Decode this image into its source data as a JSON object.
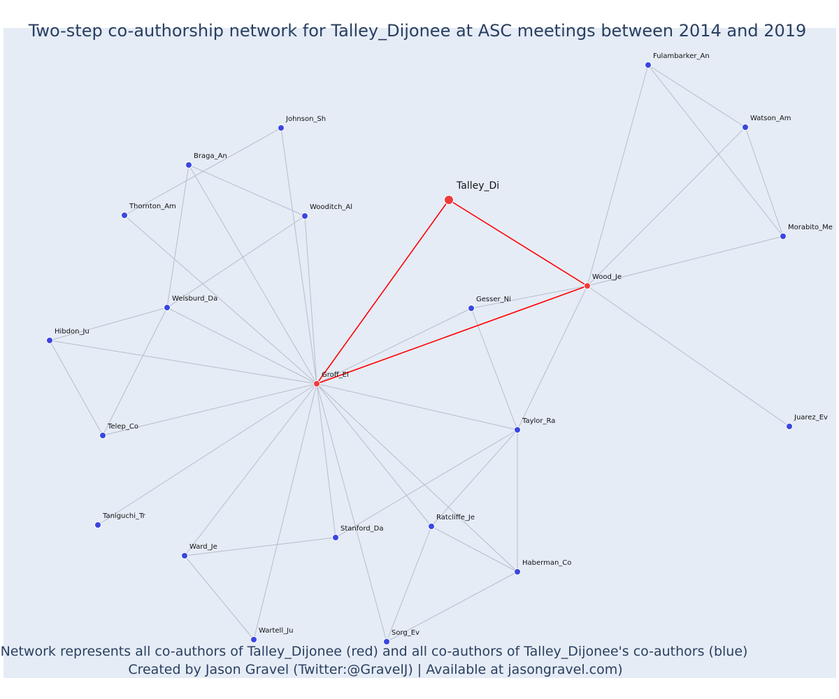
{
  "title": "Two-step co-authorship network for Talley_Dijonee at ASC meetings between 2014 and 2019",
  "footer": {
    "line1": "Network represents all co-authors of Talley_Dijonee (red) and all co-authors of Talley_Dijonee's co-authors (blue)",
    "line2": "Created by Jason Gravel (Twitter:@GravelJ) | Available at jasongravel.com)"
  },
  "colors": {
    "background": "#e5ecf6",
    "primary_node": "#ef3b3b",
    "secondary_node": "#3b46e0",
    "primary_edge": "#ff0000",
    "secondary_edge": "#b8bccb",
    "text": "#2a3f5f"
  },
  "nodes": [
    {
      "id": "Talley_Di",
      "group": "focus"
    },
    {
      "id": "Wood_Je",
      "group": "coauthor"
    },
    {
      "id": "Groff_El",
      "group": "coauthor"
    },
    {
      "id": "Fulambarker_An",
      "group": "second"
    },
    {
      "id": "Watson_Am",
      "group": "second"
    },
    {
      "id": "Morabito_Me",
      "group": "second"
    },
    {
      "id": "Juarez_Ev",
      "group": "second"
    },
    {
      "id": "Gesser_Ni",
      "group": "second"
    },
    {
      "id": "Taylor_Ra",
      "group": "second"
    },
    {
      "id": "Johnson_Sh",
      "group": "second"
    },
    {
      "id": "Braga_An",
      "group": "second"
    },
    {
      "id": "Thornton_Am",
      "group": "second"
    },
    {
      "id": "Wooditch_Al",
      "group": "second"
    },
    {
      "id": "Weisburd_Da",
      "group": "second"
    },
    {
      "id": "Hibdon_Ju",
      "group": "second"
    },
    {
      "id": "Telep_Co",
      "group": "second"
    },
    {
      "id": "Taniguchi_Tr",
      "group": "second"
    },
    {
      "id": "Ward_Je",
      "group": "second"
    },
    {
      "id": "Stanford_Da",
      "group": "second"
    },
    {
      "id": "Ratcliffe_Je",
      "group": "second"
    },
    {
      "id": "Haberman_Co",
      "group": "second"
    },
    {
      "id": "Wartell_Ju",
      "group": "second"
    },
    {
      "id": "Sorg_Ev",
      "group": "second"
    }
  ],
  "edges": [
    [
      "Talley_Di",
      "Groff_El",
      "primary"
    ],
    [
      "Talley_Di",
      "Wood_Je",
      "primary"
    ],
    [
      "Groff_El",
      "Wood_Je",
      "primary"
    ],
    [
      "Wood_Je",
      "Fulambarker_An",
      "secondary"
    ],
    [
      "Wood_Je",
      "Watson_Am",
      "secondary"
    ],
    [
      "Wood_Je",
      "Morabito_Me",
      "secondary"
    ],
    [
      "Wood_Je",
      "Juarez_Ev",
      "secondary"
    ],
    [
      "Wood_Je",
      "Gesser_Ni",
      "secondary"
    ],
    [
      "Wood_Je",
      "Taylor_Ra",
      "secondary"
    ],
    [
      "Fulambarker_An",
      "Watson_Am",
      "secondary"
    ],
    [
      "Fulambarker_An",
      "Morabito_Me",
      "secondary"
    ],
    [
      "Watson_Am",
      "Morabito_Me",
      "secondary"
    ],
    [
      "Gesser_Ni",
      "Groff_El",
      "secondary"
    ],
    [
      "Gesser_Ni",
      "Taylor_Ra",
      "secondary"
    ],
    [
      "Taylor_Ra",
      "Groff_El",
      "secondary"
    ],
    [
      "Taylor_Ra",
      "Stanford_Da",
      "secondary"
    ],
    [
      "Taylor_Ra",
      "Ratcliffe_Je",
      "secondary"
    ],
    [
      "Taylor_Ra",
      "Haberman_Co",
      "secondary"
    ],
    [
      "Johnson_Sh",
      "Thornton_Am",
      "secondary"
    ],
    [
      "Johnson_Sh",
      "Groff_El",
      "secondary"
    ],
    [
      "Braga_An",
      "Wooditch_Al",
      "secondary"
    ],
    [
      "Braga_An",
      "Groff_El",
      "secondary"
    ],
    [
      "Braga_An",
      "Weisburd_Da",
      "secondary"
    ],
    [
      "Thornton_Am",
      "Groff_El",
      "secondary"
    ],
    [
      "Wooditch_Al",
      "Groff_El",
      "secondary"
    ],
    [
      "Wooditch_Al",
      "Weisburd_Da",
      "secondary"
    ],
    [
      "Weisburd_Da",
      "Groff_El",
      "secondary"
    ],
    [
      "Weisburd_Da",
      "Hibdon_Ju",
      "secondary"
    ],
    [
      "Weisburd_Da",
      "Telep_Co",
      "secondary"
    ],
    [
      "Hibdon_Ju",
      "Groff_El",
      "secondary"
    ],
    [
      "Hibdon_Ju",
      "Telep_Co",
      "secondary"
    ],
    [
      "Telep_Co",
      "Groff_El",
      "secondary"
    ],
    [
      "Taniguchi_Tr",
      "Groff_El",
      "secondary"
    ],
    [
      "Ward_Je",
      "Groff_El",
      "secondary"
    ],
    [
      "Ward_Je",
      "Stanford_Da",
      "secondary"
    ],
    [
      "Ward_Je",
      "Wartell_Ju",
      "secondary"
    ],
    [
      "Stanford_Da",
      "Groff_El",
      "secondary"
    ],
    [
      "Ratcliffe_Je",
      "Groff_El",
      "secondary"
    ],
    [
      "Ratcliffe_Je",
      "Haberman_Co",
      "secondary"
    ],
    [
      "Ratcliffe_Je",
      "Sorg_Ev",
      "secondary"
    ],
    [
      "Haberman_Co",
      "Groff_El",
      "secondary"
    ],
    [
      "Haberman_Co",
      "Sorg_Ev",
      "secondary"
    ],
    [
      "Wartell_Ju",
      "Groff_El",
      "secondary"
    ],
    [
      "Sorg_Ev",
      "Groff_El",
      "secondary"
    ]
  ]
}
